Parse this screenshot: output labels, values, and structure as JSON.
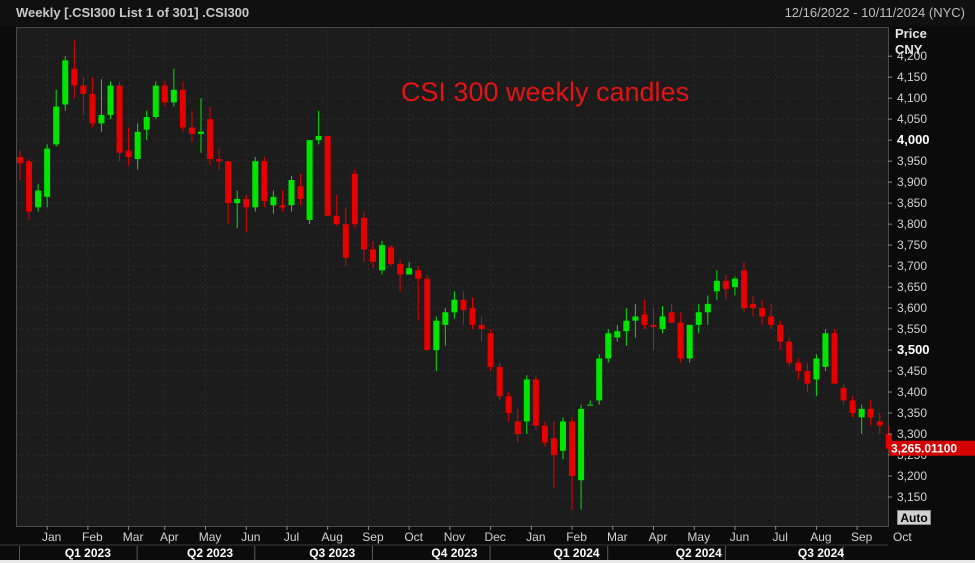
{
  "header": {
    "title": "Weekly [.CSI300 List 1 of 301] .CSI300",
    "date_range": "12/16/2022 - 10/11/2024 (NYC)"
  },
  "y_axis": {
    "title_line1": "Price",
    "title_line2": "CNY"
  },
  "auto_button": "Auto",
  "colors": {
    "up": "#00e600",
    "down": "#e60000",
    "annotation": "#e31414",
    "last_price_bg": "#d60000"
  },
  "chart_data": {
    "type": "candlestick",
    "annotation": "CSI 300 weekly candles",
    "last_price_label": "3,265.01100",
    "last_price": 3265.011,
    "ylim": [
      3100,
      4260
    ],
    "y_ticks": [
      {
        "value": 4200,
        "label": "4,200"
      },
      {
        "value": 4150,
        "label": "4,150"
      },
      {
        "value": 4100,
        "label": "4,100"
      },
      {
        "value": 4050,
        "label": "4,050"
      },
      {
        "value": 4000,
        "label": "4,000"
      },
      {
        "value": 3950,
        "label": "3,950"
      },
      {
        "value": 3900,
        "label": "3,900"
      },
      {
        "value": 3850,
        "label": "3,850"
      },
      {
        "value": 3800,
        "label": "3,800"
      },
      {
        "value": 3750,
        "label": "3,750"
      },
      {
        "value": 3700,
        "label": "3,700"
      },
      {
        "value": 3650,
        "label": "3,650"
      },
      {
        "value": 3600,
        "label": "3,600"
      },
      {
        "value": 3550,
        "label": "3,550"
      },
      {
        "value": 3500,
        "label": "3,500"
      },
      {
        "value": 3450,
        "label": "3,450"
      },
      {
        "value": 3400,
        "label": "3,400"
      },
      {
        "value": 3350,
        "label": "3,350"
      },
      {
        "value": 3300,
        "label": "3,300"
      },
      {
        "value": 3250,
        "label": "3,250"
      },
      {
        "value": 3200,
        "label": "3,200"
      },
      {
        "value": 3150,
        "label": "3,150"
      }
    ],
    "bold_ticks": [
      4000,
      3500
    ],
    "months": [
      {
        "label": "Jan",
        "week": 3.5
      },
      {
        "label": "Feb",
        "week": 8
      },
      {
        "label": "Mar",
        "week": 12.5
      },
      {
        "label": "Apr",
        "week": 16.5
      },
      {
        "label": "May",
        "week": 21
      },
      {
        "label": "Jun",
        "week": 25.5
      },
      {
        "label": "Jul",
        "week": 30
      },
      {
        "label": "Aug",
        "week": 34.5
      },
      {
        "label": "Sep",
        "week": 39
      },
      {
        "label": "Oct",
        "week": 43.5
      },
      {
        "label": "Nov",
        "week": 48
      },
      {
        "label": "Dec",
        "week": 52.5
      },
      {
        "label": "Jan",
        "week": 57
      },
      {
        "label": "Feb",
        "week": 61.5
      },
      {
        "label": "Mar",
        "week": 66
      },
      {
        "label": "Apr",
        "week": 70.5
      },
      {
        "label": "May",
        "week": 75
      },
      {
        "label": "Jun",
        "week": 79.5
      },
      {
        "label": "Jul",
        "week": 84
      },
      {
        "label": "Aug",
        "week": 88.5
      },
      {
        "label": "Sep",
        "week": 93
      },
      {
        "label": "Oct",
        "week": 97.5
      }
    ],
    "quarters": [
      {
        "label": "Q1 2023",
        "week": 7.5
      },
      {
        "label": "Q2 2023",
        "week": 21
      },
      {
        "label": "Q3 2023",
        "week": 34.5
      },
      {
        "label": "Q4 2023",
        "week": 48
      },
      {
        "label": "Q1 2024",
        "week": 61.5
      },
      {
        "label": "Q2 2024",
        "week": 75
      },
      {
        "label": "Q3 2024",
        "week": 88.5
      }
    ],
    "candles": [
      {
        "o": 3960,
        "h": 3975,
        "l": 3905,
        "c": 3945
      },
      {
        "o": 3950,
        "h": 3955,
        "l": 3810,
        "c": 3830
      },
      {
        "o": 3840,
        "h": 3895,
        "l": 3830,
        "c": 3880
      },
      {
        "o": 3865,
        "h": 3990,
        "l": 3840,
        "c": 3980
      },
      {
        "o": 3990,
        "h": 4120,
        "l": 3985,
        "c": 4080
      },
      {
        "o": 4085,
        "h": 4200,
        "l": 4070,
        "c": 4190
      },
      {
        "o": 4170,
        "h": 4240,
        "l": 4100,
        "c": 4130
      },
      {
        "o": 4130,
        "h": 4150,
        "l": 4060,
        "c": 4110
      },
      {
        "o": 4110,
        "h": 4150,
        "l": 4030,
        "c": 4040
      },
      {
        "o": 4040,
        "h": 4145,
        "l": 4020,
        "c": 4060
      },
      {
        "o": 4060,
        "h": 4140,
        "l": 4050,
        "c": 4130
      },
      {
        "o": 4130,
        "h": 4140,
        "l": 3950,
        "c": 3970
      },
      {
        "o": 3975,
        "h": 4030,
        "l": 3940,
        "c": 3960
      },
      {
        "o": 3955,
        "h": 4040,
        "l": 3930,
        "c": 4020
      },
      {
        "o": 4025,
        "h": 4070,
        "l": 4000,
        "c": 4055
      },
      {
        "o": 4055,
        "h": 4140,
        "l": 4050,
        "c": 4130
      },
      {
        "o": 4130,
        "h": 4140,
        "l": 4080,
        "c": 4090
      },
      {
        "o": 4090,
        "h": 4170,
        "l": 4080,
        "c": 4120
      },
      {
        "o": 4120,
        "h": 4140,
        "l": 4020,
        "c": 4030
      },
      {
        "o": 4030,
        "h": 4070,
        "l": 3995,
        "c": 4015
      },
      {
        "o": 4015,
        "h": 4100,
        "l": 3970,
        "c": 4020
      },
      {
        "o": 4050,
        "h": 4080,
        "l": 3940,
        "c": 3955
      },
      {
        "o": 3955,
        "h": 3980,
        "l": 3930,
        "c": 3950
      },
      {
        "o": 3950,
        "h": 3950,
        "l": 3800,
        "c": 3850
      },
      {
        "o": 3850,
        "h": 3880,
        "l": 3790,
        "c": 3860
      },
      {
        "o": 3860,
        "h": 3870,
        "l": 3780,
        "c": 3840
      },
      {
        "o": 3840,
        "h": 3960,
        "l": 3830,
        "c": 3950
      },
      {
        "o": 3950,
        "h": 3960,
        "l": 3840,
        "c": 3855
      },
      {
        "o": 3845,
        "h": 3880,
        "l": 3825,
        "c": 3865
      },
      {
        "o": 3845,
        "h": 3880,
        "l": 3830,
        "c": 3840
      },
      {
        "o": 3845,
        "h": 3915,
        "l": 3830,
        "c": 3905
      },
      {
        "o": 3890,
        "h": 3920,
        "l": 3845,
        "c": 3860
      },
      {
        "o": 3810,
        "h": 4000,
        "l": 3800,
        "c": 4000
      },
      {
        "o": 4000,
        "h": 4070,
        "l": 3990,
        "c": 4010
      },
      {
        "o": 4010,
        "h": 4010,
        "l": 3820,
        "c": 3820
      },
      {
        "o": 3820,
        "h": 3870,
        "l": 3795,
        "c": 3800
      },
      {
        "o": 3800,
        "h": 3840,
        "l": 3700,
        "c": 3720
      },
      {
        "o": 3920,
        "h": 3930,
        "l": 3790,
        "c": 3800
      },
      {
        "o": 3815,
        "h": 3830,
        "l": 3710,
        "c": 3740
      },
      {
        "o": 3740,
        "h": 3760,
        "l": 3695,
        "c": 3710
      },
      {
        "o": 3690,
        "h": 3760,
        "l": 3680,
        "c": 3750
      },
      {
        "o": 3745,
        "h": 3750,
        "l": 3700,
        "c": 3705
      },
      {
        "o": 3705,
        "h": 3715,
        "l": 3640,
        "c": 3680
      },
      {
        "o": 3680,
        "h": 3710,
        "l": 3680,
        "c": 3695
      },
      {
        "o": 3690,
        "h": 3700,
        "l": 3570,
        "c": 3670
      },
      {
        "o": 3670,
        "h": 3680,
        "l": 3500,
        "c": 3500
      },
      {
        "o": 3500,
        "h": 3580,
        "l": 3450,
        "c": 3570
      },
      {
        "o": 3560,
        "h": 3600,
        "l": 3510,
        "c": 3590
      },
      {
        "o": 3590,
        "h": 3640,
        "l": 3575,
        "c": 3620
      },
      {
        "o": 3620,
        "h": 3640,
        "l": 3560,
        "c": 3595
      },
      {
        "o": 3600,
        "h": 3625,
        "l": 3550,
        "c": 3560
      },
      {
        "o": 3560,
        "h": 3580,
        "l": 3520,
        "c": 3550
      },
      {
        "o": 3540,
        "h": 3550,
        "l": 3450,
        "c": 3460
      },
      {
        "o": 3460,
        "h": 3470,
        "l": 3380,
        "c": 3390
      },
      {
        "o": 3390,
        "h": 3400,
        "l": 3330,
        "c": 3350
      },
      {
        "o": 3330,
        "h": 3360,
        "l": 3280,
        "c": 3300
      },
      {
        "o": 3330,
        "h": 3440,
        "l": 3300,
        "c": 3430
      },
      {
        "o": 3430,
        "h": 3440,
        "l": 3310,
        "c": 3320
      },
      {
        "o": 3320,
        "h": 3330,
        "l": 3270,
        "c": 3280
      },
      {
        "o": 3290,
        "h": 3330,
        "l": 3170,
        "c": 3250
      },
      {
        "o": 3260,
        "h": 3340,
        "l": 3240,
        "c": 3330
      },
      {
        "o": 3330,
        "h": 3340,
        "l": 3120,
        "c": 3200
      },
      {
        "o": 3190,
        "h": 3370,
        "l": 3120,
        "c": 3360
      },
      {
        "o": 3370,
        "h": 3380,
        "l": 3370,
        "c": 3370
      },
      {
        "o": 3380,
        "h": 3490,
        "l": 3370,
        "c": 3480
      },
      {
        "o": 3480,
        "h": 3550,
        "l": 3470,
        "c": 3540
      },
      {
        "o": 3530,
        "h": 3560,
        "l": 3520,
        "c": 3545
      },
      {
        "o": 3545,
        "h": 3600,
        "l": 3510,
        "c": 3570
      },
      {
        "o": 3570,
        "h": 3610,
        "l": 3530,
        "c": 3580
      },
      {
        "o": 3585,
        "h": 3620,
        "l": 3550,
        "c": 3560
      },
      {
        "o": 3560,
        "h": 3600,
        "l": 3500,
        "c": 3555
      },
      {
        "o": 3550,
        "h": 3605,
        "l": 3540,
        "c": 3580
      },
      {
        "o": 3590,
        "h": 3610,
        "l": 3570,
        "c": 3565
      },
      {
        "o": 3565,
        "h": 3590,
        "l": 3470,
        "c": 3480
      },
      {
        "o": 3480,
        "h": 3560,
        "l": 3470,
        "c": 3560
      },
      {
        "o": 3560,
        "h": 3610,
        "l": 3540,
        "c": 3590
      },
      {
        "o": 3590,
        "h": 3630,
        "l": 3560,
        "c": 3610
      },
      {
        "o": 3640,
        "h": 3690,
        "l": 3620,
        "c": 3665
      },
      {
        "o": 3665,
        "h": 3680,
        "l": 3620,
        "c": 3645
      },
      {
        "o": 3650,
        "h": 3675,
        "l": 3630,
        "c": 3670
      },
      {
        "o": 3690,
        "h": 3710,
        "l": 3590,
        "c": 3600
      },
      {
        "o": 3610,
        "h": 3630,
        "l": 3580,
        "c": 3600
      },
      {
        "o": 3600,
        "h": 3620,
        "l": 3560,
        "c": 3580
      },
      {
        "o": 3580,
        "h": 3610,
        "l": 3550,
        "c": 3560
      },
      {
        "o": 3560,
        "h": 3570,
        "l": 3500,
        "c": 3520
      },
      {
        "o": 3520,
        "h": 3530,
        "l": 3460,
        "c": 3470
      },
      {
        "o": 3470,
        "h": 3480,
        "l": 3430,
        "c": 3450
      },
      {
        "o": 3450,
        "h": 3470,
        "l": 3400,
        "c": 3420
      },
      {
        "o": 3430,
        "h": 3490,
        "l": 3390,
        "c": 3480
      },
      {
        "o": 3460,
        "h": 3550,
        "l": 3450,
        "c": 3540
      },
      {
        "o": 3540,
        "h": 3550,
        "l": 3420,
        "c": 3420
      },
      {
        "o": 3410,
        "h": 3420,
        "l": 3370,
        "c": 3380
      },
      {
        "o": 3380,
        "h": 3390,
        "l": 3340,
        "c": 3350
      },
      {
        "o": 3340,
        "h": 3370,
        "l": 3300,
        "c": 3360
      },
      {
        "o": 3360,
        "h": 3380,
        "l": 3320,
        "c": 3340
      },
      {
        "o": 3330,
        "h": 3350,
        "l": 3300,
        "c": 3320
      },
      {
        "o": 3300,
        "h": 3320,
        "l": 3260,
        "c": 3265
      }
    ]
  }
}
